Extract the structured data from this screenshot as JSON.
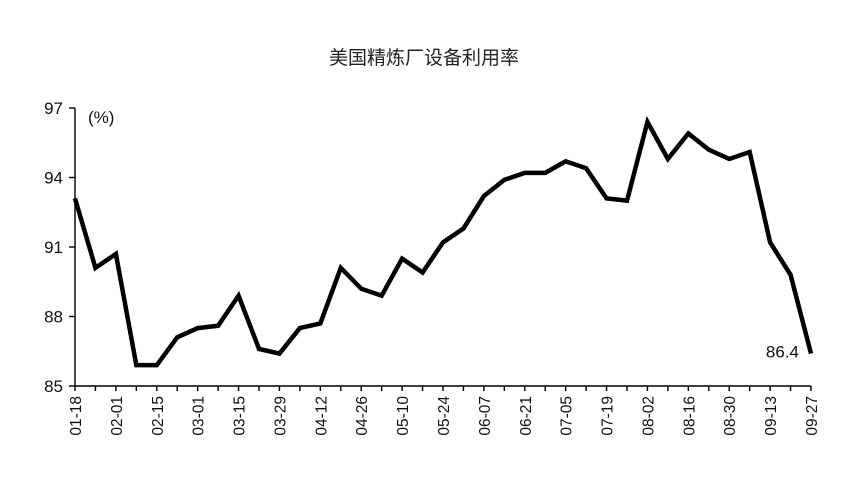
{
  "chart_data": {
    "type": "line",
    "title": "美国精炼厂设备利用率",
    "unit_label": "(%)",
    "xlabel": "",
    "ylabel": "",
    "ylim": [
      85,
      97
    ],
    "yticks": [
      85,
      88,
      91,
      94,
      97
    ],
    "xtick_labels": [
      "01-18",
      "02-01",
      "02-15",
      "03-01",
      "03-15",
      "03-29",
      "04-12",
      "04-26",
      "05-10",
      "05-24",
      "06-07",
      "06-21",
      "07-05",
      "07-19",
      "08-02",
      "08-16",
      "08-30",
      "09-13",
      "09-27"
    ],
    "grid": false,
    "legend": "none",
    "line_color": "#000000",
    "end_label": "86.4",
    "series": [
      {
        "x": [
          "01-18",
          "01-25",
          "02-01",
          "02-08",
          "02-15",
          "02-22",
          "03-01",
          "03-08",
          "03-15",
          "03-22",
          "03-29",
          "04-05",
          "04-12",
          "04-19",
          "04-26",
          "05-03",
          "05-10",
          "05-17",
          "05-24",
          "05-31",
          "06-07",
          "06-14",
          "06-21",
          "06-28",
          "07-05",
          "07-12",
          "07-19",
          "07-26",
          "08-02",
          "08-09",
          "08-16",
          "08-23",
          "08-30",
          "09-06",
          "09-13",
          "09-20",
          "09-27"
        ],
        "values": [
          93.1,
          90.1,
          90.7,
          85.9,
          85.9,
          87.1,
          87.5,
          87.6,
          88.9,
          86.6,
          86.4,
          87.5,
          87.7,
          90.1,
          89.2,
          88.9,
          90.5,
          89.9,
          91.2,
          91.8,
          93.2,
          93.9,
          94.2,
          94.2,
          94.7,
          94.4,
          93.1,
          93.0,
          96.4,
          94.8,
          95.9,
          95.2,
          94.8,
          95.1,
          91.2,
          89.8,
          86.4
        ]
      }
    ]
  }
}
